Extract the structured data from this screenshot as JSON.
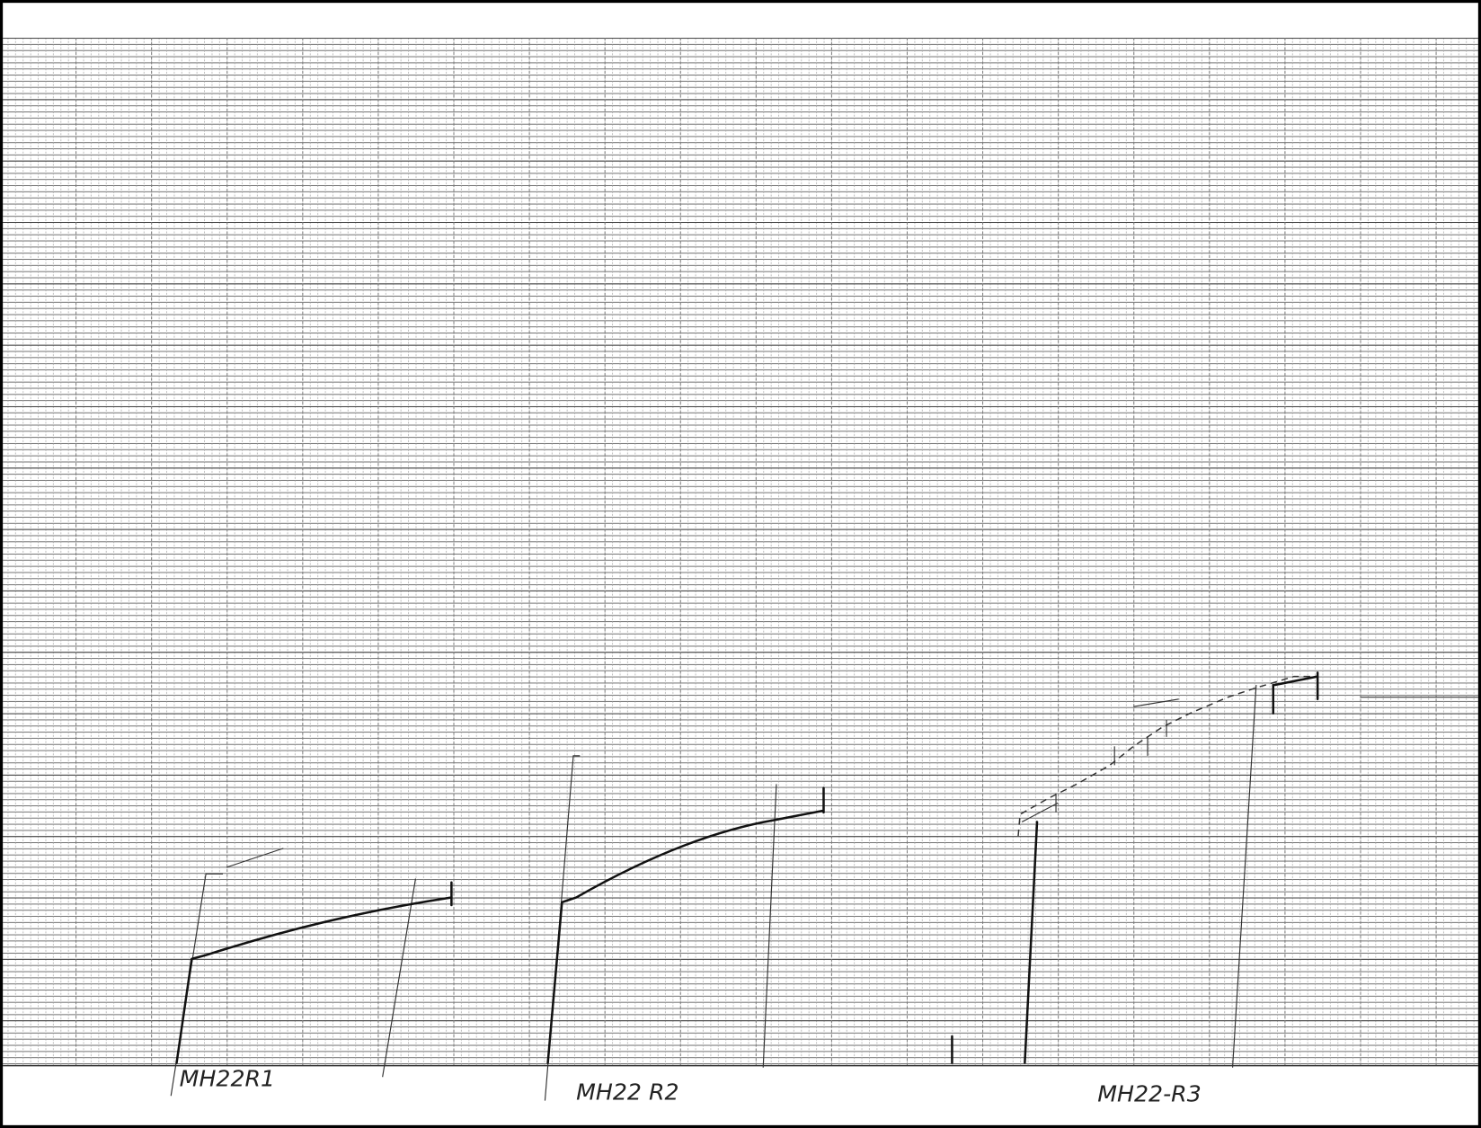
{
  "labels": [
    "MH22R1",
    "MH22 R2",
    "MH22-R3"
  ]
}
